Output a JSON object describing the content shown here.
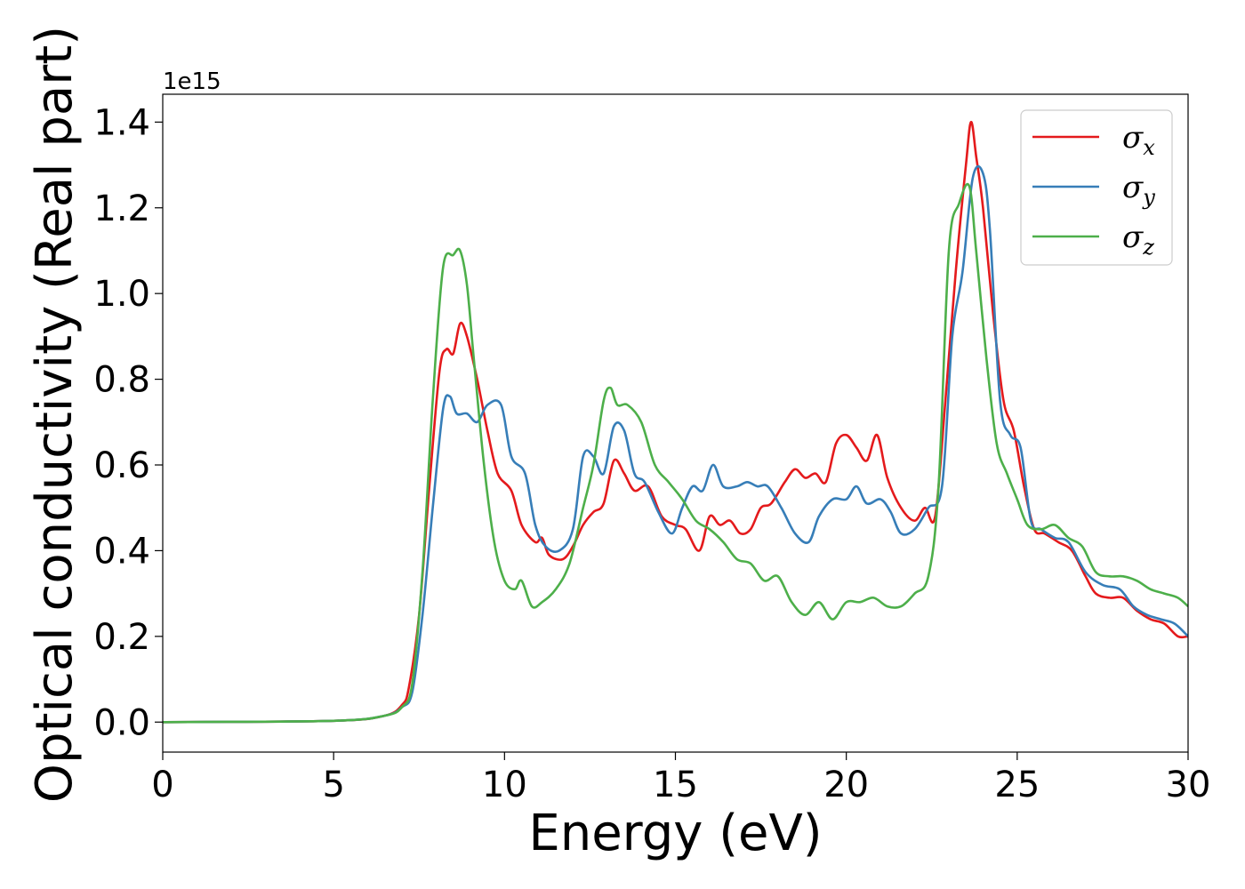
{
  "chart_data": {
    "type": "line",
    "xlabel": "Energy (eV)",
    "ylabel": "Optical conductivity (Real part)",
    "y_offset_text": "1e15",
    "xlim": [
      0,
      30
    ],
    "ylim": [
      -0.07,
      1.465
    ],
    "x_ticks": [
      0,
      5,
      10,
      15,
      20,
      25,
      30
    ],
    "x_tick_labels": [
      "0",
      "5",
      "10",
      "15",
      "20",
      "25",
      "30"
    ],
    "y_ticks": [
      0.0,
      0.2,
      0.4,
      0.6,
      0.8,
      1.0,
      1.2,
      1.4
    ],
    "y_tick_labels": [
      "0.0",
      "0.2",
      "0.4",
      "0.6",
      "0.8",
      "1.0",
      "1.2",
      "1.4"
    ],
    "grid": false,
    "legend_position": "top-right",
    "series": [
      {
        "name": "σx",
        "symbol": "σ",
        "subscript": "x",
        "color": "#e41a1c",
        "points": [
          [
            0,
            0
          ],
          [
            5,
            0.003
          ],
          [
            6.5,
            0.015
          ],
          [
            7.0,
            0.04
          ],
          [
            7.2,
            0.08
          ],
          [
            7.5,
            0.25
          ],
          [
            7.8,
            0.55
          ],
          [
            8.1,
            0.82
          ],
          [
            8.3,
            0.87
          ],
          [
            8.5,
            0.86
          ],
          [
            8.7,
            0.93
          ],
          [
            8.9,
            0.9
          ],
          [
            9.2,
            0.8
          ],
          [
            9.5,
            0.68
          ],
          [
            9.8,
            0.58
          ],
          [
            10.2,
            0.54
          ],
          [
            10.5,
            0.46
          ],
          [
            10.9,
            0.42
          ],
          [
            11.1,
            0.43
          ],
          [
            11.3,
            0.39
          ],
          [
            11.7,
            0.38
          ],
          [
            12.0,
            0.41
          ],
          [
            12.3,
            0.46
          ],
          [
            12.6,
            0.49
          ],
          [
            12.9,
            0.51
          ],
          [
            13.2,
            0.61
          ],
          [
            13.5,
            0.58
          ],
          [
            13.8,
            0.54
          ],
          [
            14.2,
            0.55
          ],
          [
            14.6,
            0.48
          ],
          [
            15.0,
            0.46
          ],
          [
            15.3,
            0.45
          ],
          [
            15.7,
            0.4
          ],
          [
            16.0,
            0.48
          ],
          [
            16.3,
            0.46
          ],
          [
            16.6,
            0.47
          ],
          [
            16.9,
            0.44
          ],
          [
            17.2,
            0.45
          ],
          [
            17.5,
            0.5
          ],
          [
            17.8,
            0.51
          ],
          [
            18.2,
            0.56
          ],
          [
            18.5,
            0.59
          ],
          [
            18.8,
            0.57
          ],
          [
            19.1,
            0.58
          ],
          [
            19.4,
            0.56
          ],
          [
            19.7,
            0.65
          ],
          [
            20.0,
            0.67
          ],
          [
            20.3,
            0.64
          ],
          [
            20.6,
            0.61
          ],
          [
            20.9,
            0.67
          ],
          [
            21.2,
            0.57
          ],
          [
            21.6,
            0.5
          ],
          [
            22.0,
            0.47
          ],
          [
            22.3,
            0.5
          ],
          [
            22.6,
            0.48
          ],
          [
            22.9,
            0.75
          ],
          [
            23.2,
            1.05
          ],
          [
            23.5,
            1.3
          ],
          [
            23.65,
            1.4
          ],
          [
            23.8,
            1.32
          ],
          [
            24.0,
            1.2
          ],
          [
            24.3,
            0.95
          ],
          [
            24.6,
            0.75
          ],
          [
            24.9,
            0.68
          ],
          [
            25.2,
            0.55
          ],
          [
            25.5,
            0.45
          ],
          [
            25.8,
            0.44
          ],
          [
            26.2,
            0.42
          ],
          [
            26.6,
            0.4
          ],
          [
            27.0,
            0.34
          ],
          [
            27.3,
            0.3
          ],
          [
            27.7,
            0.29
          ],
          [
            28.1,
            0.29
          ],
          [
            28.5,
            0.26
          ],
          [
            28.9,
            0.24
          ],
          [
            29.3,
            0.23
          ],
          [
            29.7,
            0.2
          ],
          [
            30.0,
            0.2
          ]
        ]
      },
      {
        "name": "σy",
        "symbol": "σ",
        "subscript": "y",
        "color": "#377eb8",
        "points": [
          [
            0,
            0
          ],
          [
            5,
            0.003
          ],
          [
            6.5,
            0.015
          ],
          [
            7.0,
            0.035
          ],
          [
            7.3,
            0.07
          ],
          [
            7.6,
            0.25
          ],
          [
            7.9,
            0.5
          ],
          [
            8.2,
            0.73
          ],
          [
            8.4,
            0.76
          ],
          [
            8.6,
            0.72
          ],
          [
            8.9,
            0.72
          ],
          [
            9.2,
            0.7
          ],
          [
            9.5,
            0.74
          ],
          [
            9.9,
            0.74
          ],
          [
            10.2,
            0.62
          ],
          [
            10.6,
            0.58
          ],
          [
            10.9,
            0.46
          ],
          [
            11.2,
            0.41
          ],
          [
            11.6,
            0.4
          ],
          [
            12.0,
            0.45
          ],
          [
            12.3,
            0.62
          ],
          [
            12.6,
            0.62
          ],
          [
            12.9,
            0.58
          ],
          [
            13.2,
            0.69
          ],
          [
            13.5,
            0.68
          ],
          [
            13.8,
            0.58
          ],
          [
            14.1,
            0.56
          ],
          [
            14.5,
            0.49
          ],
          [
            14.9,
            0.44
          ],
          [
            15.2,
            0.5
          ],
          [
            15.5,
            0.55
          ],
          [
            15.8,
            0.54
          ],
          [
            16.1,
            0.6
          ],
          [
            16.4,
            0.55
          ],
          [
            16.8,
            0.55
          ],
          [
            17.1,
            0.56
          ],
          [
            17.4,
            0.55
          ],
          [
            17.7,
            0.55
          ],
          [
            18.1,
            0.5
          ],
          [
            18.5,
            0.44
          ],
          [
            18.9,
            0.42
          ],
          [
            19.2,
            0.48
          ],
          [
            19.6,
            0.52
          ],
          [
            20.0,
            0.52
          ],
          [
            20.3,
            0.55
          ],
          [
            20.6,
            0.51
          ],
          [
            21.0,
            0.52
          ],
          [
            21.3,
            0.49
          ],
          [
            21.6,
            0.44
          ],
          [
            22.0,
            0.45
          ],
          [
            22.4,
            0.5
          ],
          [
            22.8,
            0.55
          ],
          [
            23.1,
            0.9
          ],
          [
            23.4,
            1.05
          ],
          [
            23.7,
            1.27
          ],
          [
            24.0,
            1.28
          ],
          [
            24.2,
            1.15
          ],
          [
            24.5,
            0.75
          ],
          [
            24.8,
            0.67
          ],
          [
            25.1,
            0.64
          ],
          [
            25.4,
            0.47
          ],
          [
            25.7,
            0.45
          ],
          [
            26.1,
            0.43
          ],
          [
            26.5,
            0.42
          ],
          [
            27.0,
            0.35
          ],
          [
            27.5,
            0.32
          ],
          [
            28.0,
            0.31
          ],
          [
            28.4,
            0.27
          ],
          [
            28.8,
            0.25
          ],
          [
            29.2,
            0.24
          ],
          [
            29.6,
            0.23
          ],
          [
            30.0,
            0.2
          ]
        ]
      },
      {
        "name": "σz",
        "symbol": "σ",
        "subscript": "z",
        "color": "#4daf4a",
        "points": [
          [
            0,
            0
          ],
          [
            5,
            0.003
          ],
          [
            6.5,
            0.015
          ],
          [
            7.0,
            0.035
          ],
          [
            7.3,
            0.09
          ],
          [
            7.6,
            0.35
          ],
          [
            7.9,
            0.75
          ],
          [
            8.2,
            1.06
          ],
          [
            8.5,
            1.09
          ],
          [
            8.7,
            1.1
          ],
          [
            8.9,
            1.02
          ],
          [
            9.1,
            0.85
          ],
          [
            9.4,
            0.6
          ],
          [
            9.7,
            0.42
          ],
          [
            10.0,
            0.33
          ],
          [
            10.3,
            0.31
          ],
          [
            10.5,
            0.33
          ],
          [
            10.8,
            0.27
          ],
          [
            11.1,
            0.28
          ],
          [
            11.5,
            0.31
          ],
          [
            11.9,
            0.37
          ],
          [
            12.3,
            0.5
          ],
          [
            12.6,
            0.6
          ],
          [
            12.9,
            0.75
          ],
          [
            13.1,
            0.78
          ],
          [
            13.3,
            0.74
          ],
          [
            13.6,
            0.74
          ],
          [
            14.0,
            0.7
          ],
          [
            14.4,
            0.6
          ],
          [
            14.8,
            0.56
          ],
          [
            15.2,
            0.52
          ],
          [
            15.6,
            0.47
          ],
          [
            16.0,
            0.45
          ],
          [
            16.4,
            0.42
          ],
          [
            16.8,
            0.38
          ],
          [
            17.2,
            0.37
          ],
          [
            17.6,
            0.33
          ],
          [
            18.0,
            0.34
          ],
          [
            18.4,
            0.28
          ],
          [
            18.8,
            0.25
          ],
          [
            19.2,
            0.28
          ],
          [
            19.6,
            0.24
          ],
          [
            20.0,
            0.28
          ],
          [
            20.4,
            0.28
          ],
          [
            20.8,
            0.29
          ],
          [
            21.2,
            0.27
          ],
          [
            21.6,
            0.27
          ],
          [
            22.0,
            0.3
          ],
          [
            22.4,
            0.34
          ],
          [
            22.7,
            0.55
          ],
          [
            23.0,
            1.1
          ],
          [
            23.3,
            1.21
          ],
          [
            23.6,
            1.25
          ],
          [
            23.8,
            1.1
          ],
          [
            24.1,
            0.85
          ],
          [
            24.4,
            0.65
          ],
          [
            24.7,
            0.58
          ],
          [
            25.0,
            0.52
          ],
          [
            25.3,
            0.46
          ],
          [
            25.7,
            0.45
          ],
          [
            26.1,
            0.46
          ],
          [
            26.5,
            0.43
          ],
          [
            26.9,
            0.41
          ],
          [
            27.3,
            0.35
          ],
          [
            27.7,
            0.34
          ],
          [
            28.1,
            0.34
          ],
          [
            28.5,
            0.33
          ],
          [
            28.9,
            0.31
          ],
          [
            29.3,
            0.3
          ],
          [
            29.7,
            0.29
          ],
          [
            30.0,
            0.27
          ]
        ]
      }
    ]
  }
}
